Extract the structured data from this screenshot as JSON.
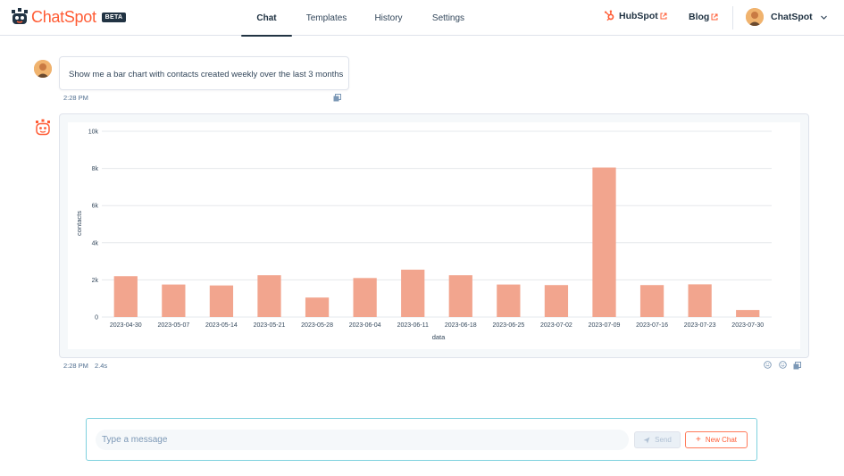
{
  "brand": {
    "name": "ChatSpot",
    "badge": "BETA",
    "accent": "#ff5c35"
  },
  "nav": {
    "tabs": [
      {
        "label": "Chat",
        "active": true
      },
      {
        "label": "Templates",
        "active": false
      },
      {
        "label": "History",
        "active": false
      },
      {
        "label": "Settings",
        "active": false
      }
    ]
  },
  "header_links": {
    "hubspot": "HubSpot",
    "blog": "Blog",
    "account": "ChatSpot"
  },
  "conversation": {
    "user_message": "Show me a bar chart with contacts created weekly over the last 3 months",
    "user_time": "2:28 PM",
    "bot_time": "2:28 PM",
    "bot_duration": "2.4s"
  },
  "composer": {
    "placeholder": "Type a message",
    "send_label": "Send",
    "new_chat_label": "New Chat"
  },
  "chart_data": {
    "type": "bar",
    "title": "",
    "xlabel": "data",
    "ylabel": "contacts",
    "ylim": [
      0,
      10000
    ],
    "yticks": [
      0,
      2000,
      4000,
      6000,
      8000,
      10000
    ],
    "ytick_labels": [
      "0",
      "2k",
      "4k",
      "6k",
      "8k",
      "10k"
    ],
    "grid": true,
    "bar_color": "#f2a58e",
    "categories": [
      "2023-04-30",
      "2023-05-07",
      "2023-05-14",
      "2023-05-21",
      "2023-05-28",
      "2023-06-04",
      "2023-06-11",
      "2023-06-18",
      "2023-06-25",
      "2023-07-02",
      "2023-07-09",
      "2023-07-16",
      "2023-07-23",
      "2023-07-30"
    ],
    "values": [
      2200,
      1750,
      1700,
      2250,
      1050,
      2100,
      2550,
      2250,
      1750,
      1720,
      8050,
      1720,
      1760,
      380
    ]
  }
}
